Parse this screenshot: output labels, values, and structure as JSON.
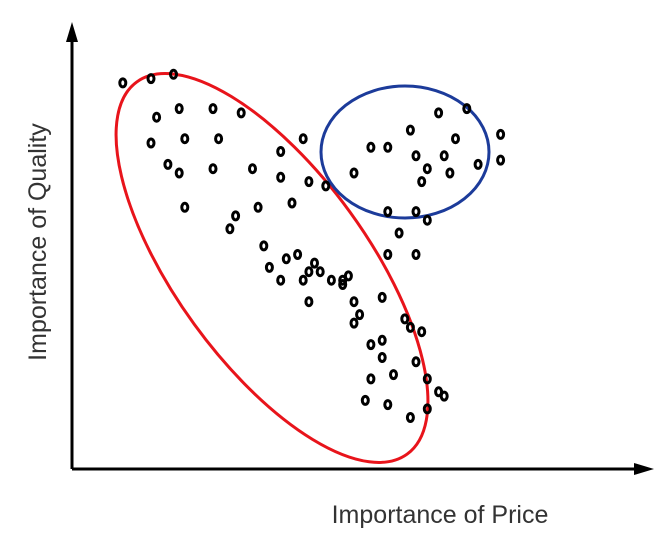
{
  "chart_data": {
    "type": "scatter",
    "xlabel": "Importance of Price",
    "ylabel": "Importance of Quality",
    "xlim": [
      0,
      100
    ],
    "ylim": [
      0,
      100
    ],
    "grid": false,
    "tick_labels": false,
    "series": [
      {
        "color": "#000000",
        "points": [
          [
            9,
            90
          ],
          [
            14,
            91
          ],
          [
            18,
            92
          ],
          [
            19,
            84
          ],
          [
            20,
            77
          ],
          [
            15,
            82
          ],
          [
            14,
            76
          ],
          [
            17,
            71
          ],
          [
            19,
            69
          ],
          [
            20,
            61
          ],
          [
            25,
            84
          ],
          [
            26,
            77
          ],
          [
            25,
            70
          ],
          [
            30,
            83
          ],
          [
            32,
            70
          ],
          [
            29,
            59
          ],
          [
            28,
            56
          ],
          [
            33,
            61
          ],
          [
            34,
            52
          ],
          [
            35,
            47
          ],
          [
            37,
            44
          ],
          [
            38,
            49
          ],
          [
            40,
            50
          ],
          [
            41,
            44
          ],
          [
            42,
            46
          ],
          [
            42,
            39
          ],
          [
            44,
            46
          ],
          [
            43,
            48
          ],
          [
            46,
            44
          ],
          [
            48,
            44
          ],
          [
            49,
            45
          ],
          [
            42,
            67
          ],
          [
            39,
            62
          ],
          [
            37,
            68
          ],
          [
            37,
            74
          ],
          [
            41,
            77
          ],
          [
            50,
            69
          ],
          [
            45,
            66
          ],
          [
            48,
            43
          ],
          [
            50,
            39
          ],
          [
            51,
            36
          ],
          [
            50,
            34
          ],
          [
            55,
            30
          ],
          [
            53,
            29
          ],
          [
            55,
            26
          ],
          [
            53,
            21
          ],
          [
            52,
            16
          ],
          [
            59,
            35
          ],
          [
            60,
            33
          ],
          [
            61,
            25
          ],
          [
            56,
            15
          ],
          [
            57,
            22
          ],
          [
            60,
            12
          ],
          [
            63,
            14
          ],
          [
            63,
            21
          ],
          [
            62,
            32
          ],
          [
            65,
            18
          ],
          [
            66,
            17
          ],
          [
            55,
            40
          ],
          [
            56,
            60
          ],
          [
            56,
            50
          ],
          [
            61,
            50
          ],
          [
            58,
            55
          ]
        ]
      },
      {
        "color": "#000000",
        "points": [
          [
            53,
            75
          ],
          [
            56,
            75
          ],
          [
            60,
            79
          ],
          [
            61,
            73
          ],
          [
            63,
            70
          ],
          [
            62,
            67
          ],
          [
            61,
            60
          ],
          [
            63,
            58
          ],
          [
            66,
            73
          ],
          [
            67,
            69
          ],
          [
            68,
            77
          ],
          [
            72,
            71
          ],
          [
            76,
            72
          ],
          [
            76,
            78
          ],
          [
            70,
            84
          ],
          [
            65,
            83
          ]
        ]
      }
    ],
    "annotations": [
      {
        "shape": "ellipse",
        "color": "#e8141b"
      },
      {
        "shape": "ellipse",
        "color": "#1c3b9a"
      }
    ]
  }
}
